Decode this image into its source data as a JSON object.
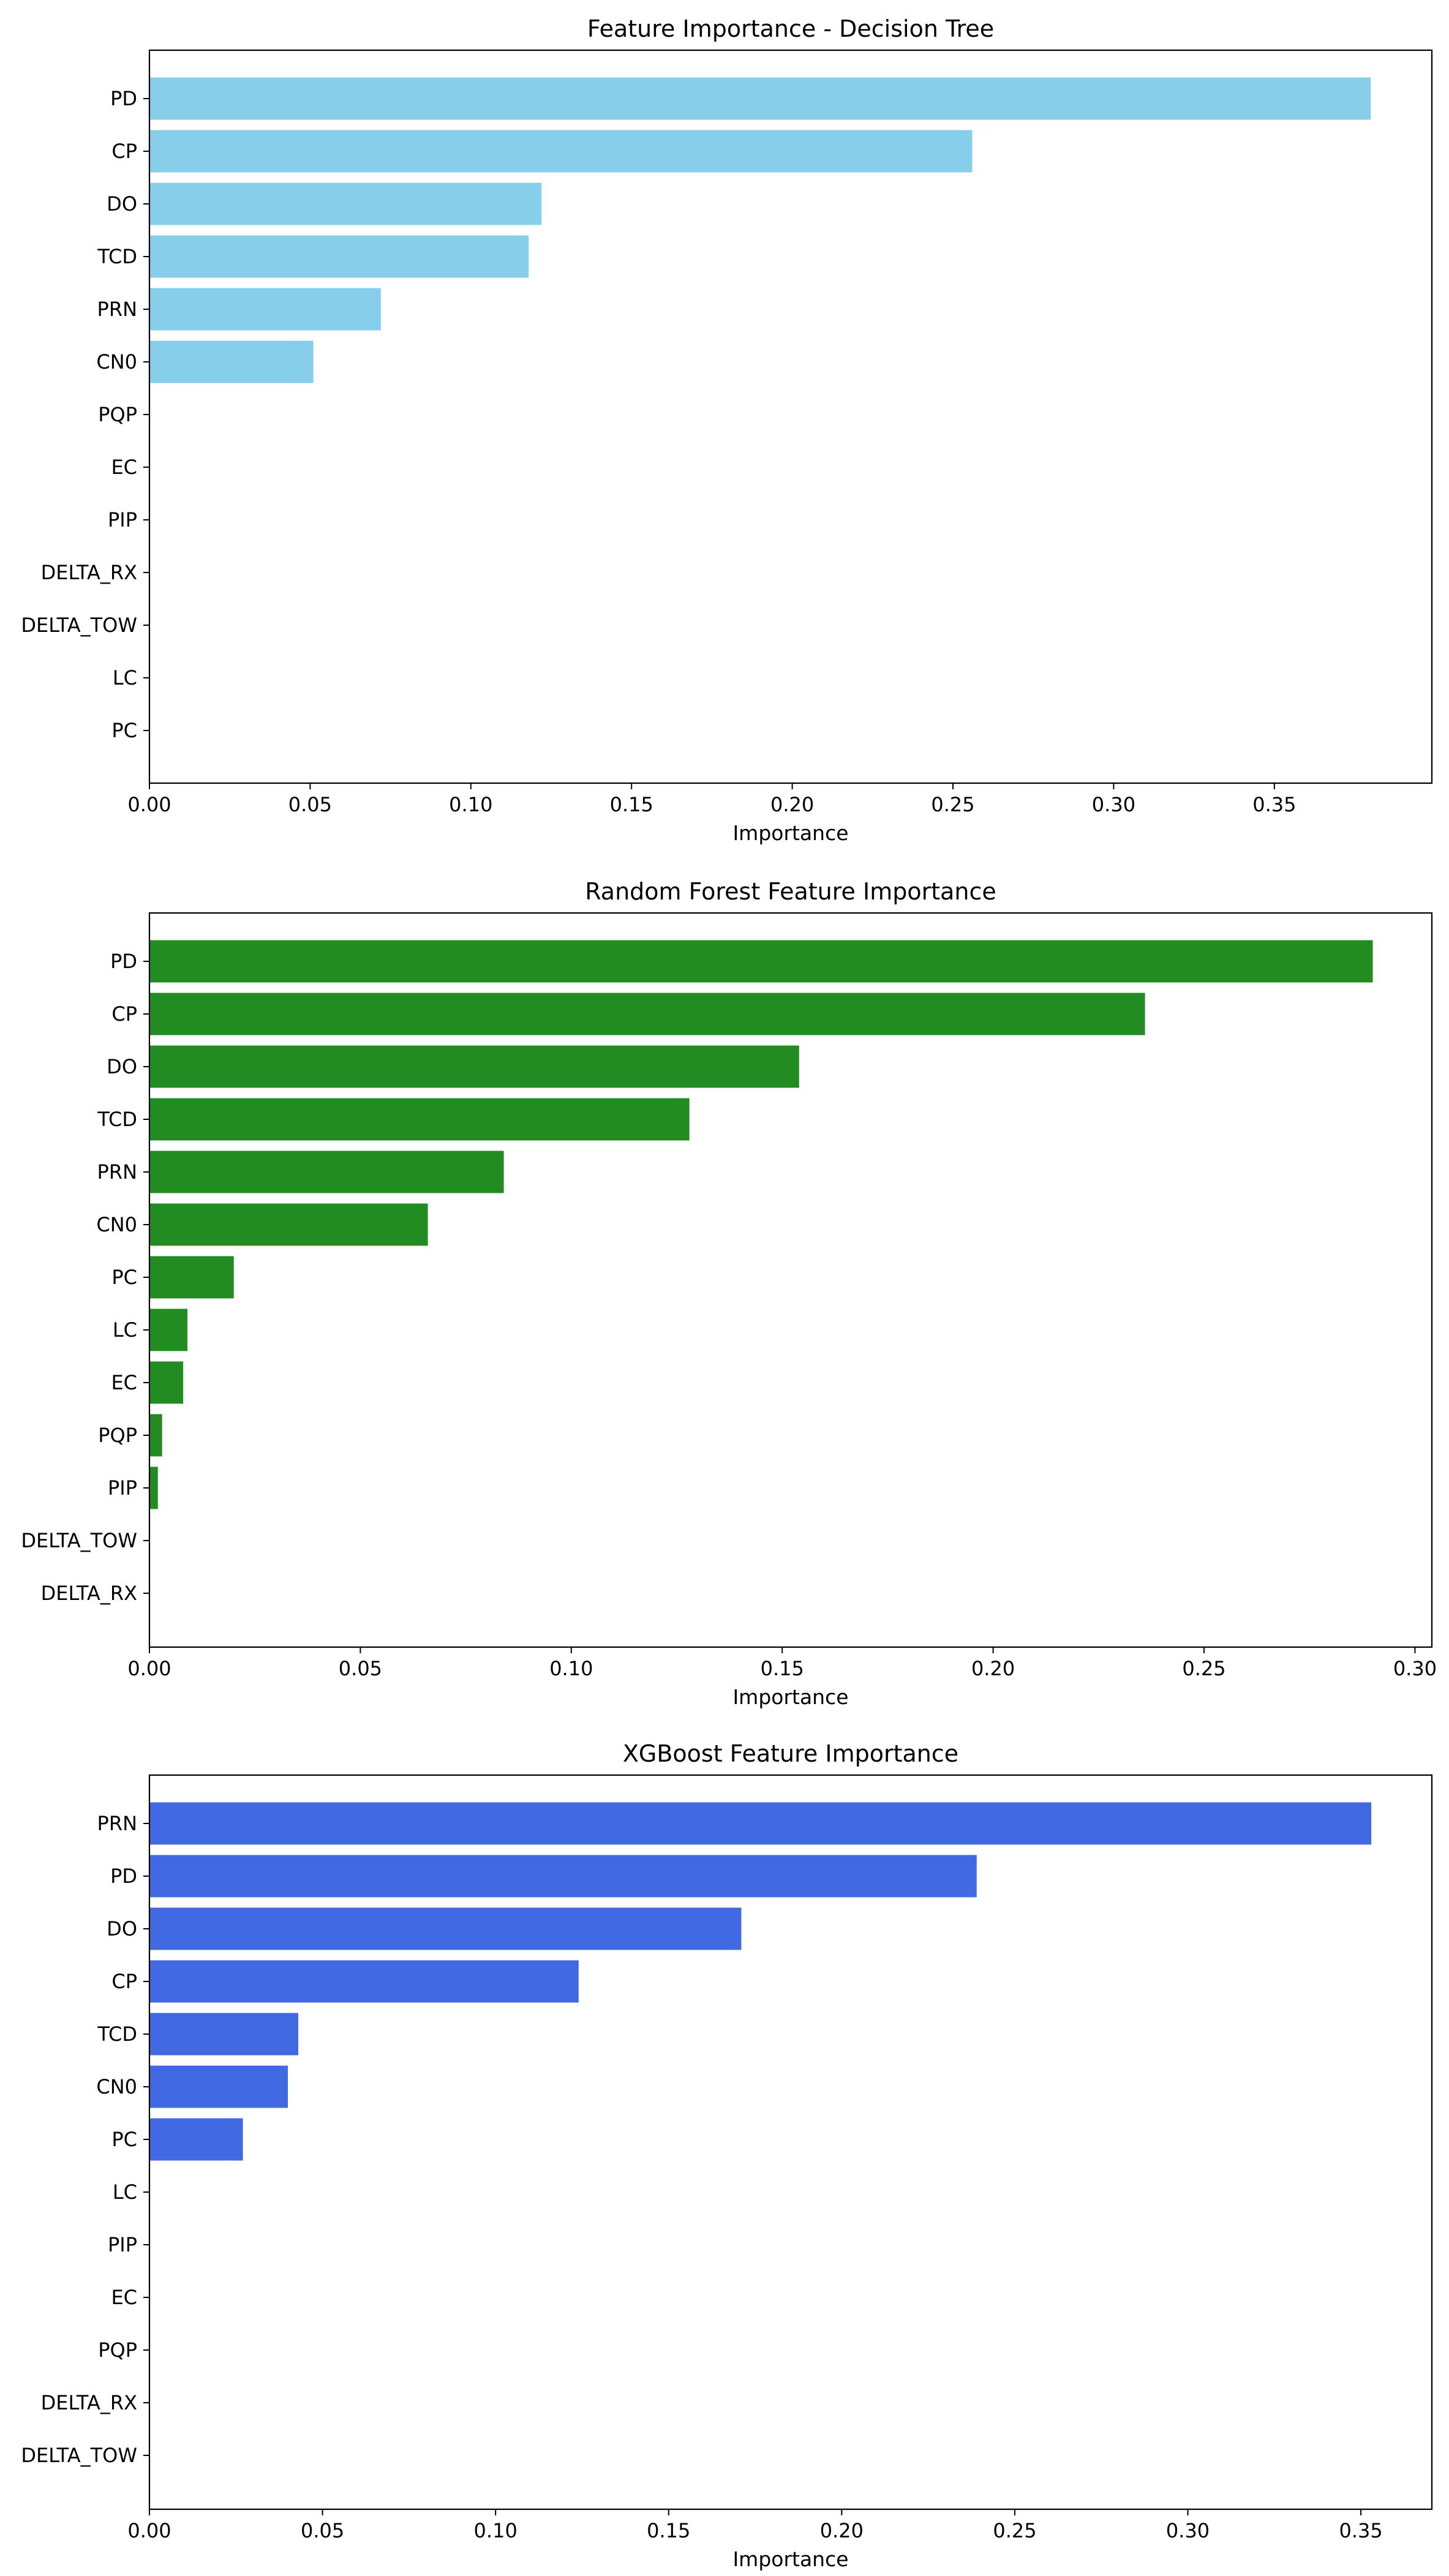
{
  "figure": {
    "chart_count": 3
  },
  "chart_data": [
    {
      "type": "bar",
      "orientation": "horizontal",
      "title": "Feature Importance - Decision Tree",
      "xlabel": "Importance",
      "ylabel": "",
      "color": "#87CEEB",
      "xlim": [
        0,
        0.399
      ],
      "xticks": [
        0.0,
        0.05,
        0.1,
        0.15,
        0.2,
        0.25,
        0.3,
        0.35
      ],
      "xtick_labels": [
        "0.00",
        "0.05",
        "0.10",
        "0.15",
        "0.20",
        "0.25",
        "0.30",
        "0.35"
      ],
      "grid": false,
      "categories": [
        "PD",
        "CP",
        "DO",
        "TCD",
        "PRN",
        "CN0",
        "PQP",
        "EC",
        "PIP",
        "DELTA_RX",
        "DELTA_TOW",
        "LC",
        "PC"
      ],
      "values": [
        0.38,
        0.256,
        0.122,
        0.118,
        0.072,
        0.051,
        0.0,
        0.0,
        0.0,
        0.0,
        0.0,
        0.0,
        0.0
      ]
    },
    {
      "type": "bar",
      "orientation": "horizontal",
      "title": "Random Forest Feature Importance",
      "xlabel": "Importance",
      "ylabel": "",
      "color": "#228B22",
      "xlim": [
        0,
        0.304
      ],
      "xticks": [
        0.0,
        0.05,
        0.1,
        0.15,
        0.2,
        0.25,
        0.3
      ],
      "xtick_labels": [
        "0.00",
        "0.05",
        "0.10",
        "0.15",
        "0.20",
        "0.25",
        "0.30"
      ],
      "grid": false,
      "categories": [
        "PD",
        "CP",
        "DO",
        "TCD",
        "PRN",
        "CN0",
        "PC",
        "LC",
        "EC",
        "PQP",
        "PIP",
        "DELTA_TOW",
        "DELTA_RX"
      ],
      "values": [
        0.29,
        0.236,
        0.154,
        0.128,
        0.084,
        0.066,
        0.02,
        0.009,
        0.008,
        0.003,
        0.002,
        0.0,
        0.0
      ]
    },
    {
      "type": "bar",
      "orientation": "horizontal",
      "title": "XGBoost Feature Importance",
      "xlabel": "Importance",
      "ylabel": "",
      "color": "#4169E1",
      "xlim": [
        0,
        0.3705
      ],
      "xticks": [
        0.0,
        0.05,
        0.1,
        0.15,
        0.2,
        0.25,
        0.3,
        0.35
      ],
      "xtick_labels": [
        "0.00",
        "0.05",
        "0.10",
        "0.15",
        "0.20",
        "0.25",
        "0.30",
        "0.35"
      ],
      "grid": false,
      "categories": [
        "PRN",
        "PD",
        "DO",
        "CP",
        "TCD",
        "CN0",
        "PC",
        "LC",
        "PIP",
        "EC",
        "PQP",
        "DELTA_RX",
        "DELTA_TOW"
      ],
      "values": [
        0.353,
        0.239,
        0.171,
        0.124,
        0.043,
        0.04,
        0.027,
        0.0,
        0.0,
        0.0,
        0.0,
        0.0,
        0.0
      ]
    }
  ]
}
